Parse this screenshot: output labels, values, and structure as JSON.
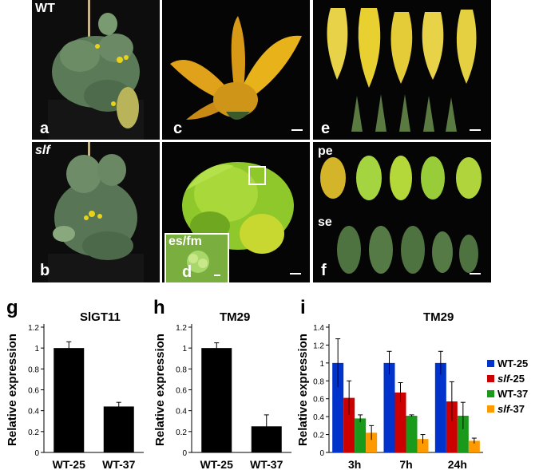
{
  "photos": {
    "a": {
      "label": "a",
      "genotype": "WT"
    },
    "b": {
      "label": "b",
      "genotype": "slf"
    },
    "c": {
      "label": "c"
    },
    "d": {
      "label": "d",
      "inset_label": "es/fm"
    },
    "e": {
      "label": "e"
    },
    "f": {
      "label": "f",
      "petal_label": "pe",
      "sepal_label": "se"
    }
  },
  "colors": {
    "bar_black": "#000000",
    "wt25": "#0033cc",
    "slf25": "#cc0000",
    "wt37": "#1a9a1a",
    "slf37": "#ff9900",
    "flower_yellow": "#e8b21a",
    "leaf_green": "#4a6a3a"
  },
  "charts": {
    "g": {
      "panel_label": "g"
    },
    "h": {
      "panel_label": "h"
    },
    "i": {
      "panel_label": "i"
    }
  },
  "chart_data": [
    {
      "type": "bar",
      "panel": "g",
      "title": "SlGT11",
      "ylabel": "Relative expression",
      "categories": [
        "WT-25",
        "WT-37"
      ],
      "values": [
        1.0,
        0.44
      ],
      "errors": [
        0.06,
        0.04
      ],
      "ylim": [
        0,
        1.2
      ],
      "yticks": [
        "0",
        "0.2",
        "0.4",
        "0.6",
        "0.8",
        "1",
        "1.2"
      ]
    },
    {
      "type": "bar",
      "panel": "h",
      "title": "TM29",
      "ylabel": "Relative expression",
      "categories": [
        "WT-25",
        "WT-37"
      ],
      "values": [
        1.0,
        0.25
      ],
      "errors": [
        0.05,
        0.11
      ],
      "ylim": [
        0,
        1.2
      ],
      "yticks": [
        "0",
        "0.2",
        "0.4",
        "0.6",
        "0.8",
        "1",
        "1.2"
      ]
    },
    {
      "type": "bar",
      "panel": "i",
      "title": "TM29",
      "ylabel": "Relative expression",
      "categories": [
        "3h",
        "7h",
        "24h"
      ],
      "series": [
        {
          "name": "WT-25",
          "values": [
            1.0,
            1.0,
            1.0
          ],
          "errors": [
            0.27,
            0.13,
            0.13
          ]
        },
        {
          "name": "slf-25",
          "values": [
            0.61,
            0.67,
            0.57
          ],
          "errors": [
            0.19,
            0.11,
            0.22
          ]
        },
        {
          "name": "WT-37",
          "values": [
            0.38,
            0.41,
            0.41
          ],
          "errors": [
            0.04,
            0.01,
            0.15
          ]
        },
        {
          "name": "slf-37",
          "values": [
            0.22,
            0.15,
            0.13
          ],
          "errors": [
            0.08,
            0.05,
            0.03
          ]
        }
      ],
      "ylim": [
        0,
        1.4
      ],
      "yticks": [
        "0",
        "0.2",
        "0.4",
        "0.6",
        "0.8",
        "1",
        "1.2",
        "1.4"
      ],
      "legend_position": "right"
    }
  ]
}
